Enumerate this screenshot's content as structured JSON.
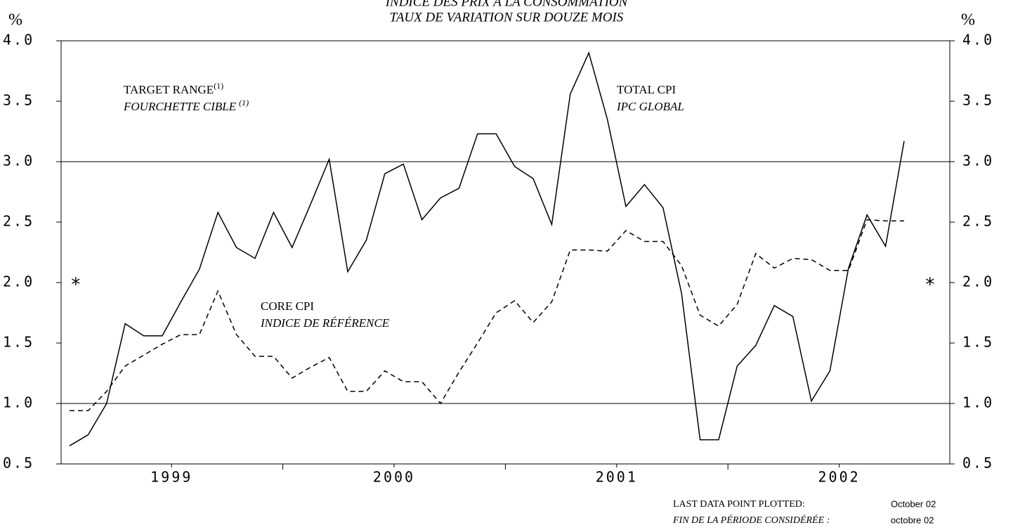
{
  "chart_data": {
    "type": "line",
    "title": "INDICE DES PRIX À LA CONSOMMATION",
    "subtitle": "TAUX DE VARIATION SUR DOUZE MOIS",
    "y_label": "%",
    "y2_label": "%",
    "categories": [
      null,
      null,
      null,
      null,
      null,
      "1999",
      null,
      null,
      null,
      null,
      null,
      null,
      null,
      null,
      null,
      null,
      null,
      "2000",
      null,
      null,
      null,
      null,
      null,
      null,
      null,
      null,
      null,
      null,
      null,
      "2001",
      null,
      null,
      null,
      null,
      null,
      null,
      null,
      null,
      null,
      null,
      null,
      "2002",
      null,
      null,
      null,
      null
    ],
    "series": [
      {
        "name": "TOTAL CPI",
        "name_fr": "IPC GLOBAL",
        "color": "#000000",
        "dash": false,
        "values": [
          0.65,
          0.74,
          1.0,
          1.66,
          1.56,
          1.56,
          1.84,
          2.11,
          2.58,
          2.29,
          2.2,
          2.58,
          2.29,
          2.65,
          3.02,
          2.09,
          2.35,
          2.9,
          2.98,
          2.52,
          2.7,
          2.78,
          3.23,
          3.23,
          2.96,
          2.86,
          2.48,
          3.56,
          3.9,
          3.35,
          2.63,
          2.81,
          2.62,
          1.91,
          0.7,
          0.7,
          1.31,
          1.48,
          1.81,
          1.72,
          1.02,
          1.27,
          2.12,
          2.56,
          2.3,
          3.17
        ]
      },
      {
        "name": "CORE CPI",
        "name_fr": "INDICE DE RÉFÉRENCE",
        "color": "#000000",
        "dash": true,
        "values": [
          0.94,
          0.94,
          1.1,
          1.31,
          1.4,
          1.49,
          1.57,
          1.57,
          1.93,
          1.57,
          1.39,
          1.39,
          1.21,
          1.3,
          1.38,
          1.1,
          1.1,
          1.27,
          1.18,
          1.18,
          1.0,
          1.26,
          1.5,
          1.75,
          1.85,
          1.67,
          1.84,
          2.27,
          2.27,
          2.26,
          2.43,
          2.34,
          2.34,
          2.14,
          1.73,
          1.64,
          1.82,
          2.24,
          2.12,
          2.2,
          2.19,
          2.1,
          2.1,
          2.52,
          2.51,
          2.51
        ]
      }
    ],
    "ylim": [
      0.5,
      4.0
    ],
    "yticks": [
      {
        "value": 0.5,
        "label": "0.5"
      },
      {
        "value": 1,
        "label": "1.0"
      },
      {
        "value": 1.5,
        "label": "1.5"
      },
      {
        "value": 2,
        "label": "2.0"
      },
      {
        "value": 2.5,
        "label": "2.5"
      },
      {
        "value": 3,
        "label": "3.0"
      },
      {
        "value": 3.5,
        "label": "3.5"
      },
      {
        "value": 4,
        "label": "4.0"
      }
    ],
    "target_range": {
      "label": "TARGET RANGE",
      "label_fr": "FOURCHETTE CIBLE",
      "note": "(1)",
      "bounds": [
        1,
        3
      ]
    },
    "marker": {
      "text": "*",
      "value": 2
    },
    "footer": {
      "label": "LAST DATA POINT PLOTTED:",
      "value": "October 02",
      "label_fr": "FIN DE LA PÉRIODE CONSIDÉRÉE :",
      "value_fr": "octobre 02"
    }
  }
}
